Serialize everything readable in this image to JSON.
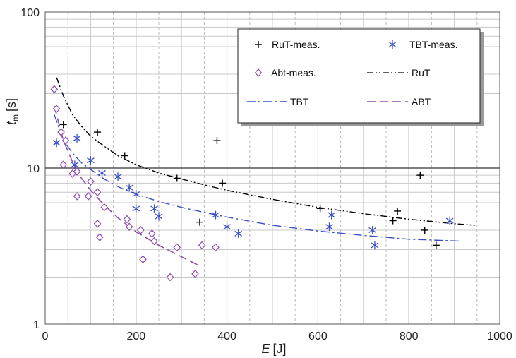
{
  "chart_data": {
    "type": "scatter",
    "xlabel": {
      "symbol": "E",
      "unit": "[J]"
    },
    "ylabel": {
      "symbol": "t",
      "subscript": "m",
      "unit": "[s]"
    },
    "xlim": [
      0,
      1000
    ],
    "ylim": [
      1,
      100
    ],
    "yscale": "log",
    "x_ticks": [
      "0",
      "200",
      "400",
      "600",
      "800",
      "1000"
    ],
    "y_ticks": [
      "1",
      "10",
      "100"
    ],
    "grid": true,
    "legend_position": "top-right",
    "colors": {
      "rut": "#000000",
      "tbt": "#3a4fc6",
      "abt": "#8f4bb0"
    },
    "legend": {
      "rut_meas": "RuT-meas.",
      "tbt_meas": "TBT-meas.",
      "abt_meas": "Abt-meas.",
      "rut_fit": "RuT",
      "tbt_fit": "TBT",
      "abt_fit": "ABT"
    },
    "series": [
      {
        "key": "rut_meas",
        "name": "RuT-meas.",
        "marker": "plus",
        "color": "#000000",
        "points": [
          [
            40,
            19
          ],
          [
            115,
            17
          ],
          [
            175,
            12
          ],
          [
            290,
            8.6
          ],
          [
            340,
            4.5
          ],
          [
            378,
            15
          ],
          [
            390,
            8
          ],
          [
            605,
            5.5
          ],
          [
            765,
            4.6
          ],
          [
            775,
            5.3
          ],
          [
            825,
            9
          ],
          [
            835,
            4
          ],
          [
            860,
            3.2
          ]
        ]
      },
      {
        "key": "tbt_meas",
        "name": "TBT-meas.",
        "marker": "asterisk",
        "color": "#3a4fc6",
        "points": [
          [
            25,
            14.5
          ],
          [
            65,
            10.5
          ],
          [
            70,
            15.5
          ],
          [
            100,
            11.2
          ],
          [
            125,
            9.3
          ],
          [
            160,
            8.8
          ],
          [
            185,
            7.5
          ],
          [
            200,
            6.8
          ],
          [
            200,
            5.5
          ],
          [
            240,
            5.5
          ],
          [
            250,
            4.9
          ],
          [
            375,
            5
          ],
          [
            400,
            4.2
          ],
          [
            425,
            3.8
          ],
          [
            625,
            4.2
          ],
          [
            630,
            5
          ],
          [
            720,
            4
          ],
          [
            725,
            3.2
          ],
          [
            890,
            4.6
          ]
        ]
      },
      {
        "key": "abt_meas",
        "name": "Abt-meas.",
        "marker": "diamond",
        "color": "#8f4bb0",
        "points": [
          [
            20,
            32
          ],
          [
            25,
            24
          ],
          [
            35,
            17
          ],
          [
            40,
            10.5
          ],
          [
            45,
            15
          ],
          [
            60,
            9.2
          ],
          [
            70,
            9.5
          ],
          [
            70,
            6.6
          ],
          [
            95,
            6.6
          ],
          [
            100,
            8.2
          ],
          [
            115,
            7
          ],
          [
            115,
            4.4
          ],
          [
            120,
            3.6
          ],
          [
            130,
            5.6
          ],
          [
            180,
            4.7
          ],
          [
            185,
            4.2
          ],
          [
            210,
            4
          ],
          [
            215,
            2.6
          ],
          [
            235,
            3.8
          ],
          [
            240,
            3.4
          ],
          [
            275,
            2
          ],
          [
            290,
            3.1
          ],
          [
            345,
            3.2
          ],
          [
            375,
            3.1
          ],
          [
            330,
            2.1
          ]
        ]
      }
    ],
    "fits": [
      {
        "key": "rut_fit",
        "name": "RuT",
        "style": "dash-dot-dot",
        "color": "#000000",
        "points": [
          [
            25,
            38
          ],
          [
            40,
            29
          ],
          [
            60,
            22
          ],
          [
            80,
            18.5
          ],
          [
            100,
            16
          ],
          [
            130,
            13.8
          ],
          [
            160,
            12
          ],
          [
            200,
            10.5
          ],
          [
            250,
            9.3
          ],
          [
            300,
            8.5
          ],
          [
            350,
            7.8
          ],
          [
            400,
            7.2
          ],
          [
            500,
            6.3
          ],
          [
            600,
            5.6
          ],
          [
            700,
            5.1
          ],
          [
            800,
            4.7
          ],
          [
            900,
            4.4
          ],
          [
            945,
            4.3
          ]
        ]
      },
      {
        "key": "tbt_fit",
        "name": "TBT",
        "style": "dash-dot",
        "color": "#3a4fc6",
        "points": [
          [
            20,
            22
          ],
          [
            40,
            15
          ],
          [
            60,
            12.5
          ],
          [
            80,
            10.8
          ],
          [
            100,
            9.8
          ],
          [
            130,
            8.5
          ],
          [
            160,
            7.6
          ],
          [
            200,
            6.8
          ],
          [
            250,
            6.1
          ],
          [
            300,
            5.6
          ],
          [
            350,
            5.2
          ],
          [
            400,
            4.85
          ],
          [
            500,
            4.3
          ],
          [
            600,
            3.95
          ],
          [
            700,
            3.7
          ],
          [
            800,
            3.5
          ],
          [
            915,
            3.4
          ]
        ]
      },
      {
        "key": "abt_fit",
        "name": "ABT",
        "style": "dash",
        "color": "#8f4bb0",
        "points": [
          [
            20,
            25
          ],
          [
            40,
            15
          ],
          [
            60,
            11
          ],
          [
            80,
            8.6
          ],
          [
            100,
            7.2
          ],
          [
            130,
            5.8
          ],
          [
            160,
            4.8
          ],
          [
            200,
            3.9
          ],
          [
            250,
            3.2
          ],
          [
            300,
            2.7
          ],
          [
            335,
            2.4
          ]
        ]
      }
    ]
  }
}
